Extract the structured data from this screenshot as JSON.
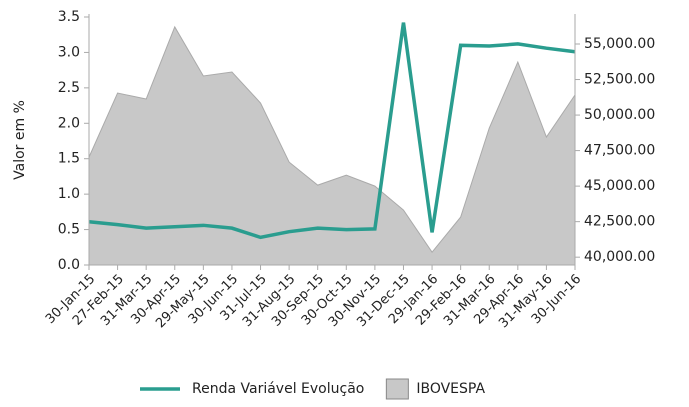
{
  "chart_data": {
    "type": "line-area",
    "y_label": "Valor em %",
    "categories": [
      "30-Jan-15",
      "27-Feb-15",
      "31-Mar-15",
      "30-Apr-15",
      "29-May-15",
      "30-Jun-15",
      "31-Jul-15",
      "31-Aug-15",
      "30-Sep-15",
      "30-Oct-15",
      "30-Nov-15",
      "31-Dec-15",
      "29-Jan-16",
      "29-Feb-16",
      "31-Mar-16",
      "29-Apr-16",
      "31-May-16",
      "30-Jun-16"
    ],
    "series": [
      {
        "name": "Renda Variável Evolução",
        "type": "line",
        "color": "#2a9d8f",
        "axis": "y",
        "values": [
          0.61,
          0.57,
          0.52,
          0.54,
          0.56,
          0.52,
          0.39,
          0.47,
          0.52,
          0.5,
          0.51,
          3.42,
          0.46,
          3.1,
          3.09,
          3.12,
          3.06,
          3.01
        ]
      },
      {
        "name": "IBOVESPA",
        "type": "area",
        "color": "#c8c8c8",
        "axis": "y2",
        "values": [
          47040,
          51550,
          51130,
          56200,
          52750,
          53030,
          50850,
          46690,
          45070,
          45770,
          45000,
          43310,
          40350,
          42820,
          49080,
          53730,
          48450,
          51410
        ]
      }
    ],
    "ylim": [
      0,
      3.5
    ],
    "yticks": [
      {
        "value": 0,
        "label": "0.0"
      },
      0.5,
      {
        "value": 1,
        "label": "1.0"
      },
      1.5,
      {
        "value": 2,
        "label": "2.0"
      },
      2.5,
      {
        "value": 3,
        "label": "3.0"
      },
      3.5
    ],
    "y2lim": [
      39450,
      56900
    ],
    "y2ticks": [
      {
        "value": 40000,
        "label": "40,000.00"
      },
      {
        "value": 42500,
        "label": "42,500.00"
      },
      {
        "value": 45000,
        "label": "45,000.00"
      },
      {
        "value": 47500,
        "label": "47,500.00"
      },
      {
        "value": 50000,
        "label": "50,000.00"
      },
      {
        "value": 52500,
        "label": "52,500.00"
      },
      {
        "value": 55000,
        "label": "55,000.00"
      }
    ]
  }
}
